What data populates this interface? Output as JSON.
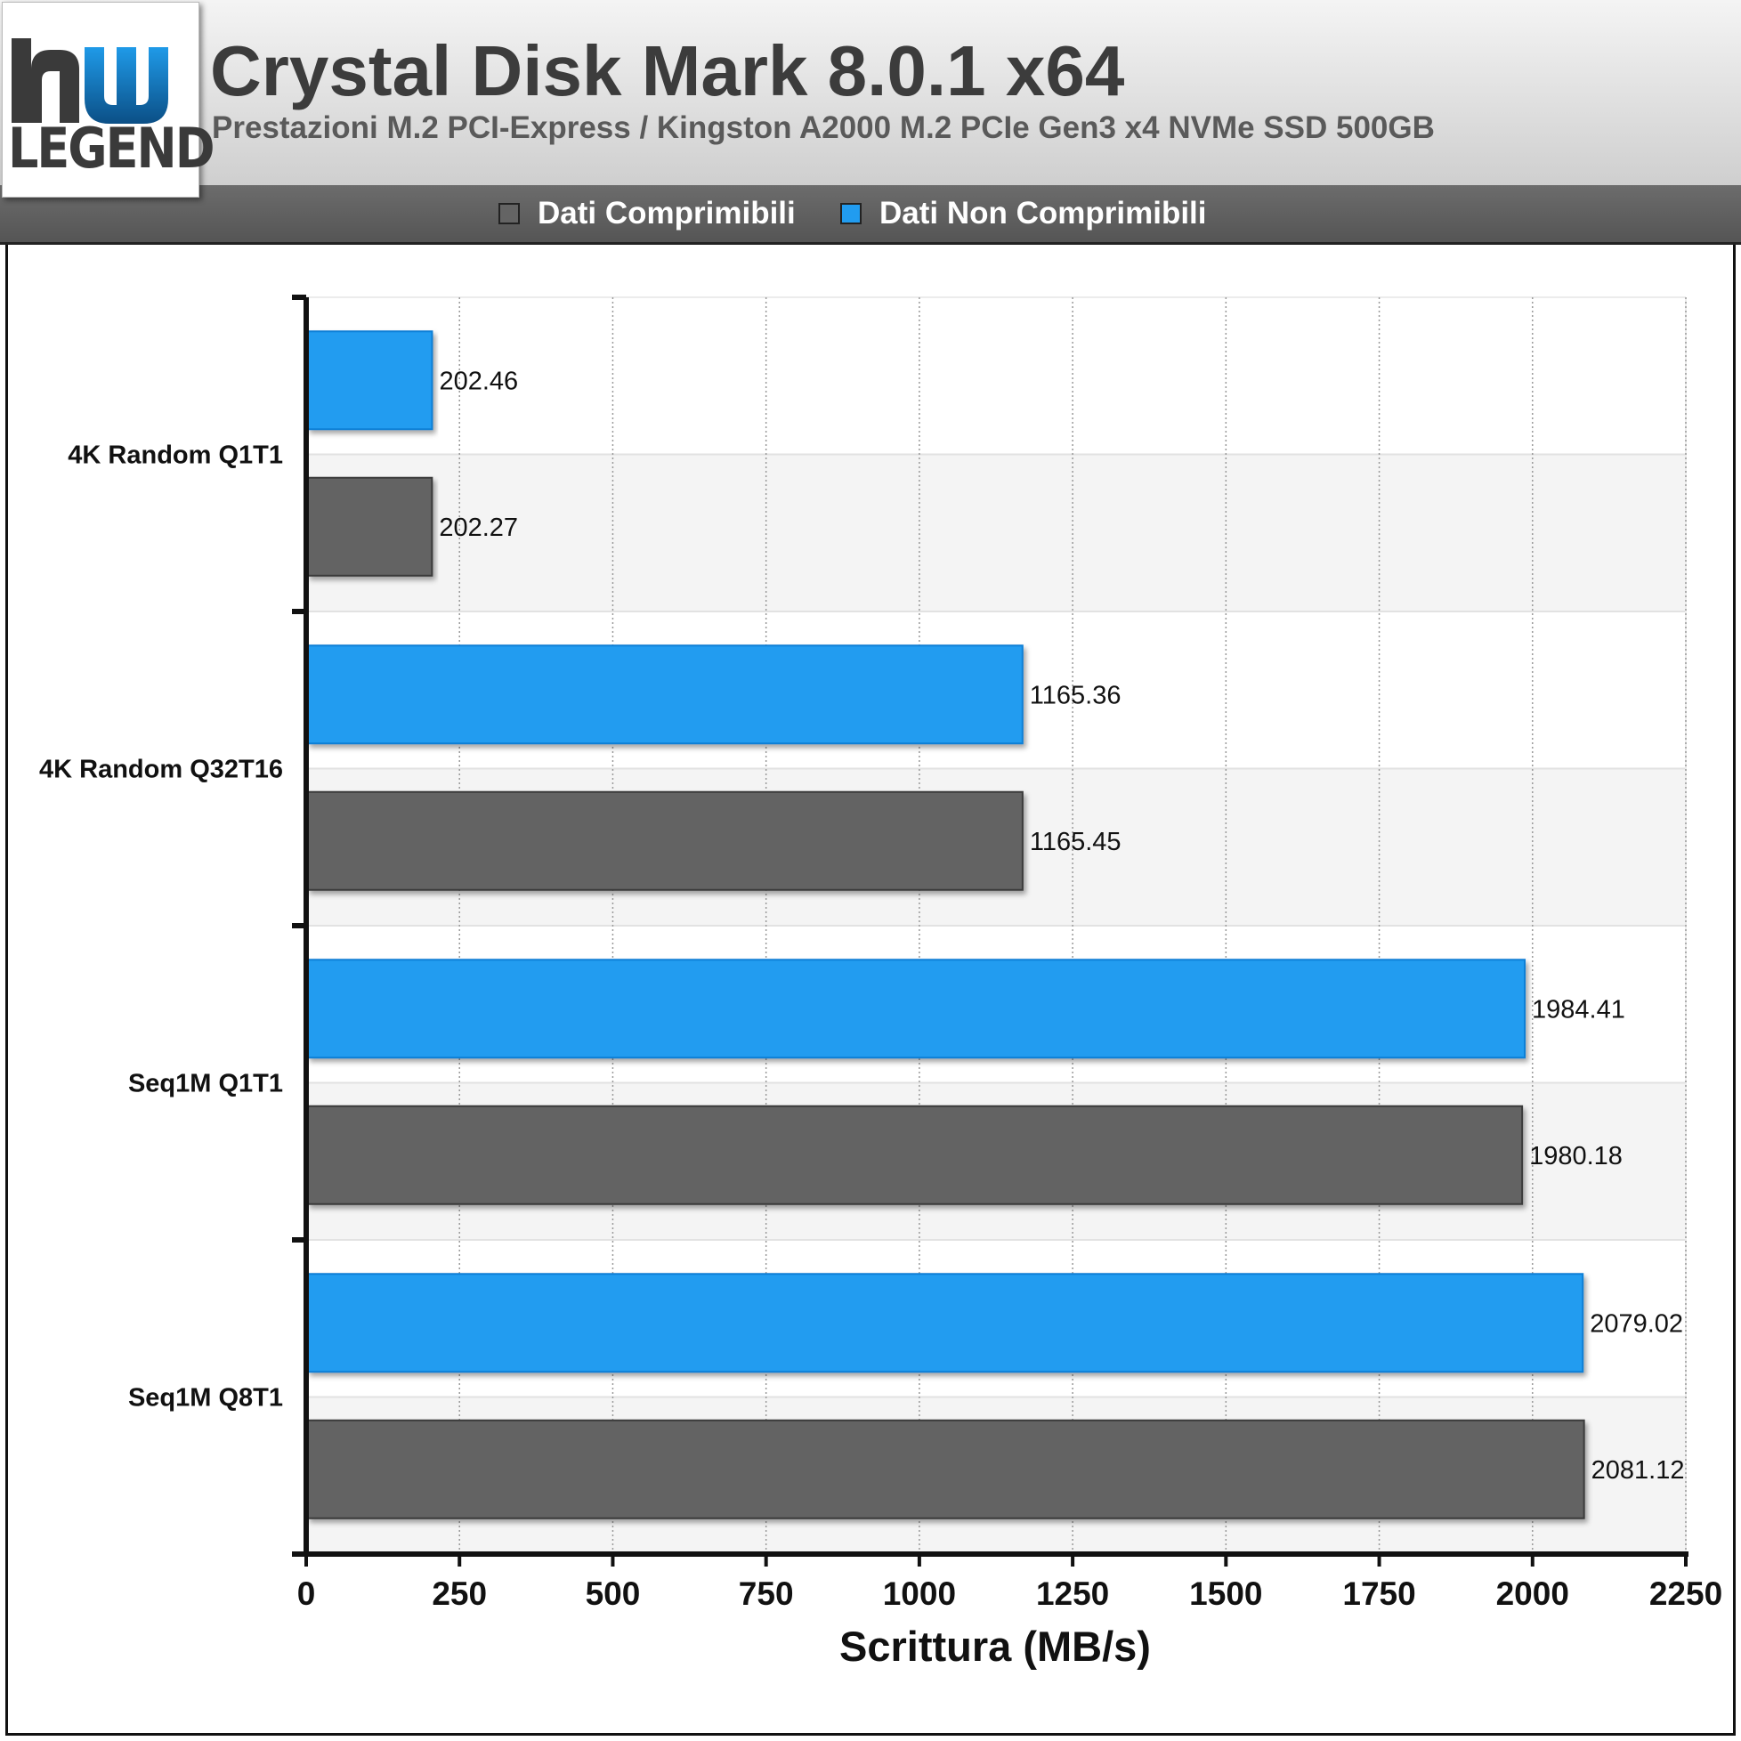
{
  "header": {
    "logo_text": "LEGEND",
    "title": "Crystal Disk Mark 8.0.1 x64",
    "subtitle": "Prestazioni M.2 PCI-Express / Kingston A2000 M.2 PCIe Gen3 x4 NVMe SSD 500GB"
  },
  "legend": [
    {
      "name": "Dati Comprimibili",
      "color": "#646464"
    },
    {
      "name": "Dati Non Comprimibili",
      "color": "#219cf0"
    }
  ],
  "chart_data": {
    "type": "bar",
    "orientation": "horizontal",
    "categories": [
      "4K Random Q1T1",
      "4K Random Q32T16",
      "Seq1M Q1T1",
      "Seq1M Q8T1"
    ],
    "series": [
      {
        "name": "Dati Non Comprimibili",
        "color": "#219cf0",
        "values": [
          202.46,
          1165.36,
          1984.41,
          2079.02
        ]
      },
      {
        "name": "Dati Comprimibili",
        "color": "#646464",
        "values": [
          202.27,
          1165.45,
          1980.18,
          2081.12
        ]
      }
    ],
    "xlabel": "Scrittura (MB/s)",
    "xlim": [
      0,
      2250
    ],
    "xticks": [
      0,
      250,
      500,
      750,
      1000,
      1250,
      1500,
      1750,
      2000,
      2250
    ],
    "grid": true,
    "legend_position": "top"
  }
}
